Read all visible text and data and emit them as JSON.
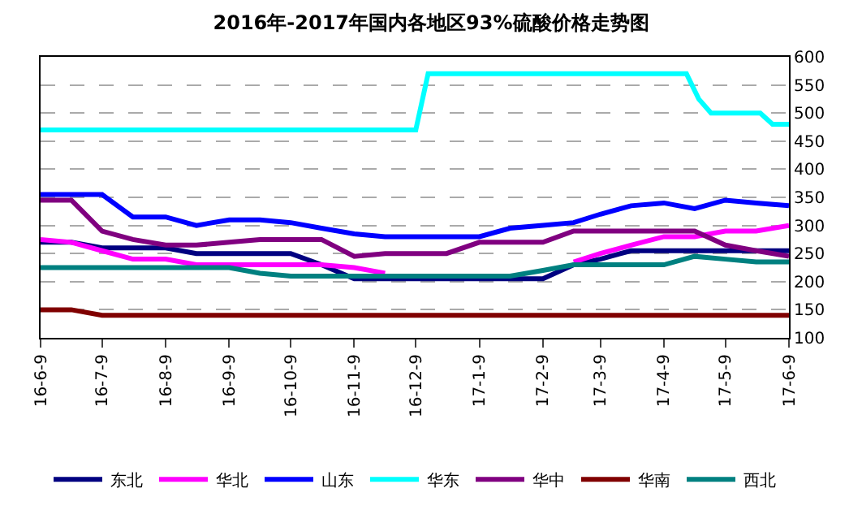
{
  "chart_data": {
    "type": "line",
    "title": "2016年-2017年国内各地区93%硫酸价格走势图",
    "x": [
      "2016-06-09",
      "2016-06-24",
      "2016-07-09",
      "2016-07-24",
      "2016-08-09",
      "2016-08-24",
      "2016-09-09",
      "2016-09-24",
      "2016-10-09",
      "2016-10-24",
      "2016-11-09",
      "2016-11-24",
      "2016-12-09",
      "2016-12-24",
      "2017-01-09",
      "2017-01-24",
      "2017-02-09",
      "2017-02-24",
      "2017-03-09",
      "2017-03-24",
      "2017-04-09",
      "2017-04-24",
      "2017-05-09",
      "2017-05-24",
      "2017-06-09"
    ],
    "series": [
      {
        "name": "东北",
        "color": "#000080",
        "values": [
          270,
          270,
          260,
          260,
          260,
          250,
          250,
          250,
          250,
          230,
          205,
          205,
          205,
          205,
          205,
          205,
          205,
          230,
          240,
          255,
          255,
          255,
          255,
          255,
          255
        ]
      },
      {
        "name": "华北",
        "color": "#ff00ff",
        "values": [
          275,
          270,
          255,
          240,
          240,
          230,
          230,
          230,
          230,
          230,
          225,
          215,
          null,
          null,
          null,
          null,
          null,
          235,
          250,
          265,
          280,
          280,
          290,
          290,
          300
        ]
      },
      {
        "name": "山东",
        "color": "#0000ff",
        "values": [
          355,
          355,
          355,
          315,
          315,
          300,
          310,
          310,
          305,
          295,
          285,
          280,
          280,
          280,
          280,
          295,
          300,
          305,
          320,
          335,
          340,
          330,
          345,
          340,
          335
        ]
      },
      {
        "name": "华东",
        "color": "#00ffff",
        "x": [
          "2016-06-09",
          "2016-12-09",
          "2016-12-15",
          "2017-04-20",
          "2017-04-26",
          "2017-05-02",
          "2017-05-26",
          "2017-06-01",
          "2017-06-09"
        ],
        "values": [
          470,
          470,
          570,
          570,
          525,
          500,
          500,
          480,
          480
        ]
      },
      {
        "name": "华中",
        "color": "#800080",
        "values": [
          345,
          345,
          290,
          275,
          265,
          265,
          270,
          275,
          275,
          275,
          245,
          250,
          250,
          250,
          270,
          270,
          270,
          290,
          290,
          290,
          290,
          290,
          265,
          255,
          245
        ]
      },
      {
        "name": "华南",
        "color": "#800000",
        "values": [
          150,
          150,
          140,
          140,
          140,
          140,
          140,
          140,
          140,
          140,
          140,
          140,
          140,
          140,
          140,
          140,
          140,
          140,
          140,
          140,
          140,
          140,
          140,
          140,
          140
        ]
      },
      {
        "name": "西北",
        "color": "#008080",
        "values": [
          225,
          225,
          225,
          225,
          225,
          225,
          225,
          215,
          210,
          210,
          210,
          210,
          210,
          210,
          210,
          210,
          220,
          230,
          230,
          230,
          230,
          245,
          240,
          235,
          235
        ]
      }
    ],
    "xlim": [
      "2016-06-09",
      "2017-06-09"
    ],
    "xticks": [
      {
        "value": "2016-06-09",
        "label": "16-6-9"
      },
      {
        "value": "2016-07-09",
        "label": "16-7-9"
      },
      {
        "value": "2016-08-09",
        "label": "16-8-9"
      },
      {
        "value": "2016-09-09",
        "label": "16-9-9"
      },
      {
        "value": "2016-10-09",
        "label": "16-10-9"
      },
      {
        "value": "2016-11-09",
        "label": "16-11-9"
      },
      {
        "value": "2016-12-09",
        "label": "16-12-9"
      },
      {
        "value": "2017-01-09",
        "label": "17-1-9"
      },
      {
        "value": "2017-02-09",
        "label": "17-2-9"
      },
      {
        "value": "2017-03-09",
        "label": "17-3-9"
      },
      {
        "value": "2017-04-09",
        "label": "17-4-9"
      },
      {
        "value": "2017-05-09",
        "label": "17-5-9"
      },
      {
        "value": "2017-06-09",
        "label": "17-6-9"
      }
    ],
    "ylim": [
      100,
      600
    ],
    "yticks": [
      100,
      150,
      200,
      250,
      300,
      350,
      400,
      450,
      500,
      550,
      600
    ],
    "grid": "y",
    "legend": "bottom",
    "marker": "none",
    "line_style": "solid"
  }
}
